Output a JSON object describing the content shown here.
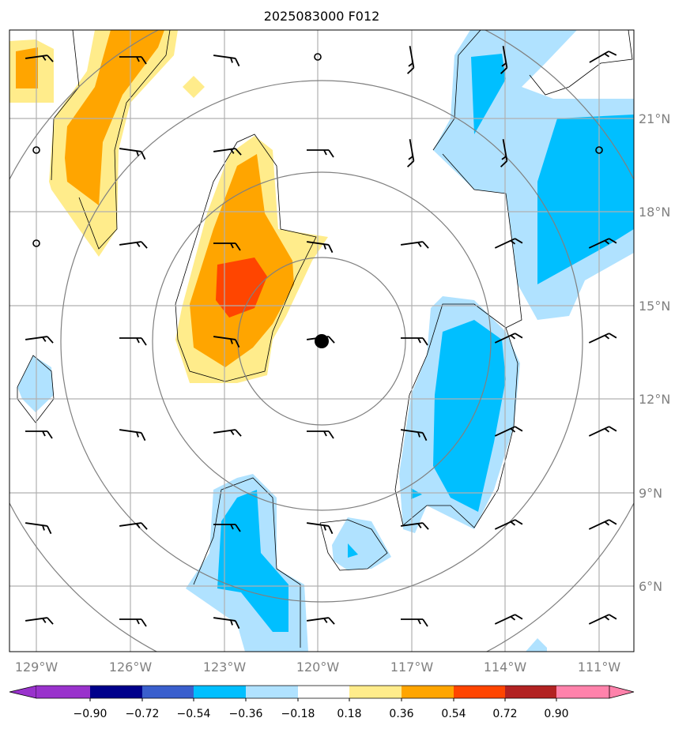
{
  "title": "2025083000 F012",
  "lon_labels": [
    "129°W",
    "126°W",
    "123°W",
    "120°W",
    "117°W",
    "114°W",
    "111°W"
  ],
  "lat_labels": [
    "21°N",
    "18°N",
    "15°N",
    "12°N",
    "9°N",
    "6°N"
  ],
  "colorbar": {
    "ticks": [
      "−0.90",
      "−0.72",
      "−0.54",
      "−0.36",
      "−0.18",
      "0.18",
      "0.36",
      "0.54",
      "0.72",
      "0.90"
    ],
    "colors": [
      "#9932cc",
      "#00008b",
      "#3a5fcd",
      "#00bfff",
      "#b0e2ff",
      "#ffffff",
      "#ffec8b",
      "#ffa500",
      "#ff4500",
      "#b22222",
      "#ff82ab"
    ]
  },
  "colors": {
    "grid": "#b0b0b0",
    "rings": "#808080"
  }
}
